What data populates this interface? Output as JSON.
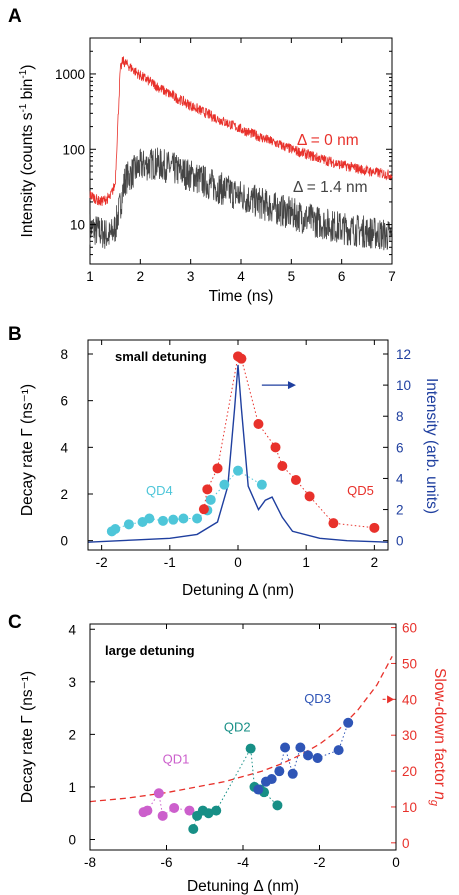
{
  "figure": {
    "panel_letters": [
      "A",
      "B",
      "C"
    ]
  },
  "colors": {
    "red": "#e8312b",
    "dark_grey": "#454545",
    "blue_line": "#1f3f9f",
    "cyan": "#4ec6d9",
    "magenta": "#cc5fcc",
    "teal": "#178f86",
    "navy": "#2f55b6",
    "red_dash": "#e8312b"
  },
  "chart_data": [
    {
      "type": "line",
      "panel": "A",
      "title": "",
      "xlabel": "Time (ns)",
      "ylabel": "Intensity (counts s⁻¹ bin⁻¹)",
      "ylabel_parts": [
        "Intensity (counts s",
        "-1",
        " bin",
        "-1",
        ")"
      ],
      "xlim": [
        1,
        7
      ],
      "ylim": [
        3,
        3000
      ],
      "yscale": "log",
      "x_ticks": [
        "1",
        "2",
        "3",
        "4",
        "5",
        "6",
        "7"
      ],
      "y_ticks": [
        "10",
        "100",
        "1000"
      ],
      "grid": false,
      "series": [
        {
          "name": "Δ = 0 nm",
          "color": "red",
          "x": [
            1.0,
            1.2,
            1.4,
            1.5,
            1.55,
            1.6,
            1.65,
            1.7,
            2.0,
            2.5,
            3.0,
            3.5,
            4.0,
            4.5,
            5.0,
            5.5,
            6.0,
            6.5,
            7.0
          ],
          "y": [
            25,
            20,
            23,
            35,
            200,
            1100,
            1500,
            1400,
            950,
            580,
            380,
            260,
            185,
            135,
            100,
            78,
            62,
            52,
            45
          ],
          "noise": 0.07
        },
        {
          "name": "Δ = 1.4 nm",
          "color": "dark_grey",
          "x": [
            1.0,
            1.2,
            1.4,
            1.5,
            1.6,
            1.7,
            2.0,
            2.3,
            2.5,
            3.0,
            3.5,
            4.0,
            4.5,
            5.0,
            5.5,
            6.0,
            6.5,
            7.0
          ],
          "y": [
            9,
            8,
            7,
            9,
            18,
            40,
            60,
            65,
            60,
            45,
            32,
            24,
            18,
            14,
            11,
            9,
            8,
            7
          ],
          "noise": 0.22
        }
      ],
      "annotations": [
        {
          "text": "Δ = 0 nm",
          "x": 5.05,
          "y": 140,
          "color": "red"
        },
        {
          "text": "Δ = 1.4 nm",
          "x": 5.05,
          "y": 43,
          "color": "dark_grey"
        }
      ]
    },
    {
      "type": "scatter",
      "panel": "B",
      "title": "",
      "xlabel": "Detuning Δ (nm)",
      "ylabel": "Decay rate Γ (ns⁻¹)",
      "y2label": "Intensity (arb. units)",
      "xlim": [
        -2.2,
        2.2
      ],
      "ylim": [
        -0.4,
        8.6
      ],
      "y2lim": [
        -0.6,
        12.9
      ],
      "x_ticks": [
        "-2",
        "-1",
        "0",
        "1",
        "2"
      ],
      "y_ticks": [
        "0",
        "2",
        "4",
        "6",
        "8"
      ],
      "y2_ticks": [
        "0",
        "2",
        "4",
        "6",
        "8",
        "10",
        "12"
      ],
      "grid": false,
      "annotations": [
        {
          "text": "small detuning",
          "x": -1.7,
          "y": 7.7,
          "kind": "note"
        }
      ],
      "series": [
        {
          "name": "QD4",
          "color": "cyan",
          "connect": "dotted",
          "x": [
            -1.85,
            -1.8,
            -1.6,
            -1.4,
            -1.3,
            -1.1,
            -0.95,
            -0.8,
            -0.6,
            -0.45,
            -0.4,
            -0.2,
            0.0,
            0.35
          ],
          "y": [
            0.4,
            0.5,
            0.7,
            0.8,
            0.95,
            0.85,
            0.9,
            0.95,
            0.95,
            1.3,
            1.75,
            2.4,
            3.0,
            2.4
          ],
          "label": {
            "text": "QD4",
            "x": -1.35,
            "y": 1.95
          }
        },
        {
          "name": "QD5",
          "color": "red",
          "connect": "dotted",
          "x": [
            0.0,
            0.05,
            0.3,
            0.55,
            0.65,
            0.85,
            1.05,
            1.4,
            2.0,
            -0.3,
            -0.45,
            -0.5
          ],
          "y": [
            7.9,
            7.8,
            5.0,
            4.0,
            3.2,
            2.6,
            1.9,
            0.75,
            0.55,
            3.1,
            2.2,
            1.35
          ],
          "order": [
            9,
            10,
            11
          ],
          "label": {
            "text": "QD5",
            "x": 1.6,
            "y": 1.95
          }
        },
        {
          "name": "",
          "color": "blue_line",
          "axis": "right",
          "style": "line",
          "x": [
            -2.2,
            -1.5,
            -1.0,
            -0.6,
            -0.3,
            -0.15,
            -0.05,
            0.0,
            0.05,
            0.15,
            0.3,
            0.4,
            0.5,
            0.65,
            0.8,
            1.2,
            1.6,
            2.2
          ],
          "y": [
            -0.1,
            0.05,
            0.15,
            0.4,
            1.2,
            3.5,
            8.5,
            11.3,
            8.5,
            3.5,
            2.0,
            2.6,
            2.8,
            1.5,
            0.6,
            0.15,
            0.0,
            -0.1
          ]
        }
      ],
      "arrow": {
        "from_x": 0.35,
        "to_x": 0.85,
        "y": 10.0,
        "axis": "right",
        "color": "blue_line"
      }
    },
    {
      "type": "scatter",
      "panel": "C",
      "title": "",
      "xlabel": "Detuning Δ (nm)",
      "ylabel": "Decay rate Γ (ns⁻¹)",
      "y2label_parts": [
        "Slow-down factor ",
        "n",
        "g"
      ],
      "xlim": [
        -8,
        0
      ],
      "ylim": [
        -0.2,
        4.1
      ],
      "y2lim": [
        -2,
        61
      ],
      "x_ticks": [
        "-8",
        "-6",
        "-4",
        "-2",
        "0"
      ],
      "y_ticks": [
        "0",
        "1",
        "2",
        "3",
        "4"
      ],
      "y2_ticks": [
        "0",
        "10",
        "20",
        "30",
        "40",
        "50",
        "60"
      ],
      "grid": false,
      "annotations": [
        {
          "text": "large detuning",
          "x": -7.2,
          "y": 3.55,
          "kind": "note"
        }
      ],
      "series": [
        {
          "name": "QD1",
          "color": "magenta",
          "connect": "dotted",
          "x": [
            -6.6,
            -6.5,
            -6.2,
            -6.1,
            -5.8,
            -5.4
          ],
          "y": [
            0.52,
            0.55,
            0.88,
            0.45,
            0.6,
            0.55
          ],
          "label": {
            "text": "QD1",
            "x": -6.1,
            "y": 1.45
          }
        },
        {
          "name": "QD2",
          "color": "teal",
          "connect": "dotted",
          "x": [
            -5.3,
            -5.2,
            -5.05,
            -4.9,
            -4.7,
            -3.8,
            -3.7,
            -3.55,
            -3.45,
            -3.1
          ],
          "y": [
            0.2,
            0.45,
            0.55,
            0.5,
            0.55,
            1.73,
            1.0,
            0.95,
            0.9,
            0.65
          ],
          "label": {
            "text": "QD2",
            "x": -4.5,
            "y": 2.05
          }
        },
        {
          "name": "QD3",
          "color": "navy",
          "connect": "dotted",
          "x": [
            -3.6,
            -3.4,
            -3.25,
            -3.05,
            -2.9,
            -2.7,
            -2.5,
            -2.3,
            -2.05,
            -1.5,
            -1.25
          ],
          "y": [
            0.95,
            1.1,
            1.15,
            1.3,
            1.75,
            1.25,
            1.75,
            1.6,
            1.55,
            1.7,
            2.22
          ],
          "label": {
            "text": "QD3",
            "x": -2.4,
            "y": 2.6
          }
        },
        {
          "name": "",
          "color": "red_dash",
          "axis": "right",
          "style": "dashed",
          "x": [
            -8,
            -7,
            -6,
            -5,
            -4.5,
            -4,
            -3.5,
            -3,
            -2.5,
            -2,
            -1.5,
            -1,
            -0.5,
            -0.1
          ],
          "y": [
            11.5,
            12.5,
            14,
            16,
            17,
            18.5,
            20,
            22,
            24.5,
            27.5,
            31.5,
            37,
            44,
            52
          ]
        }
      ],
      "arrow": {
        "from_x": -0.35,
        "to_x": -0.05,
        "y": 40,
        "axis": "right",
        "color": "red"
      }
    }
  ]
}
